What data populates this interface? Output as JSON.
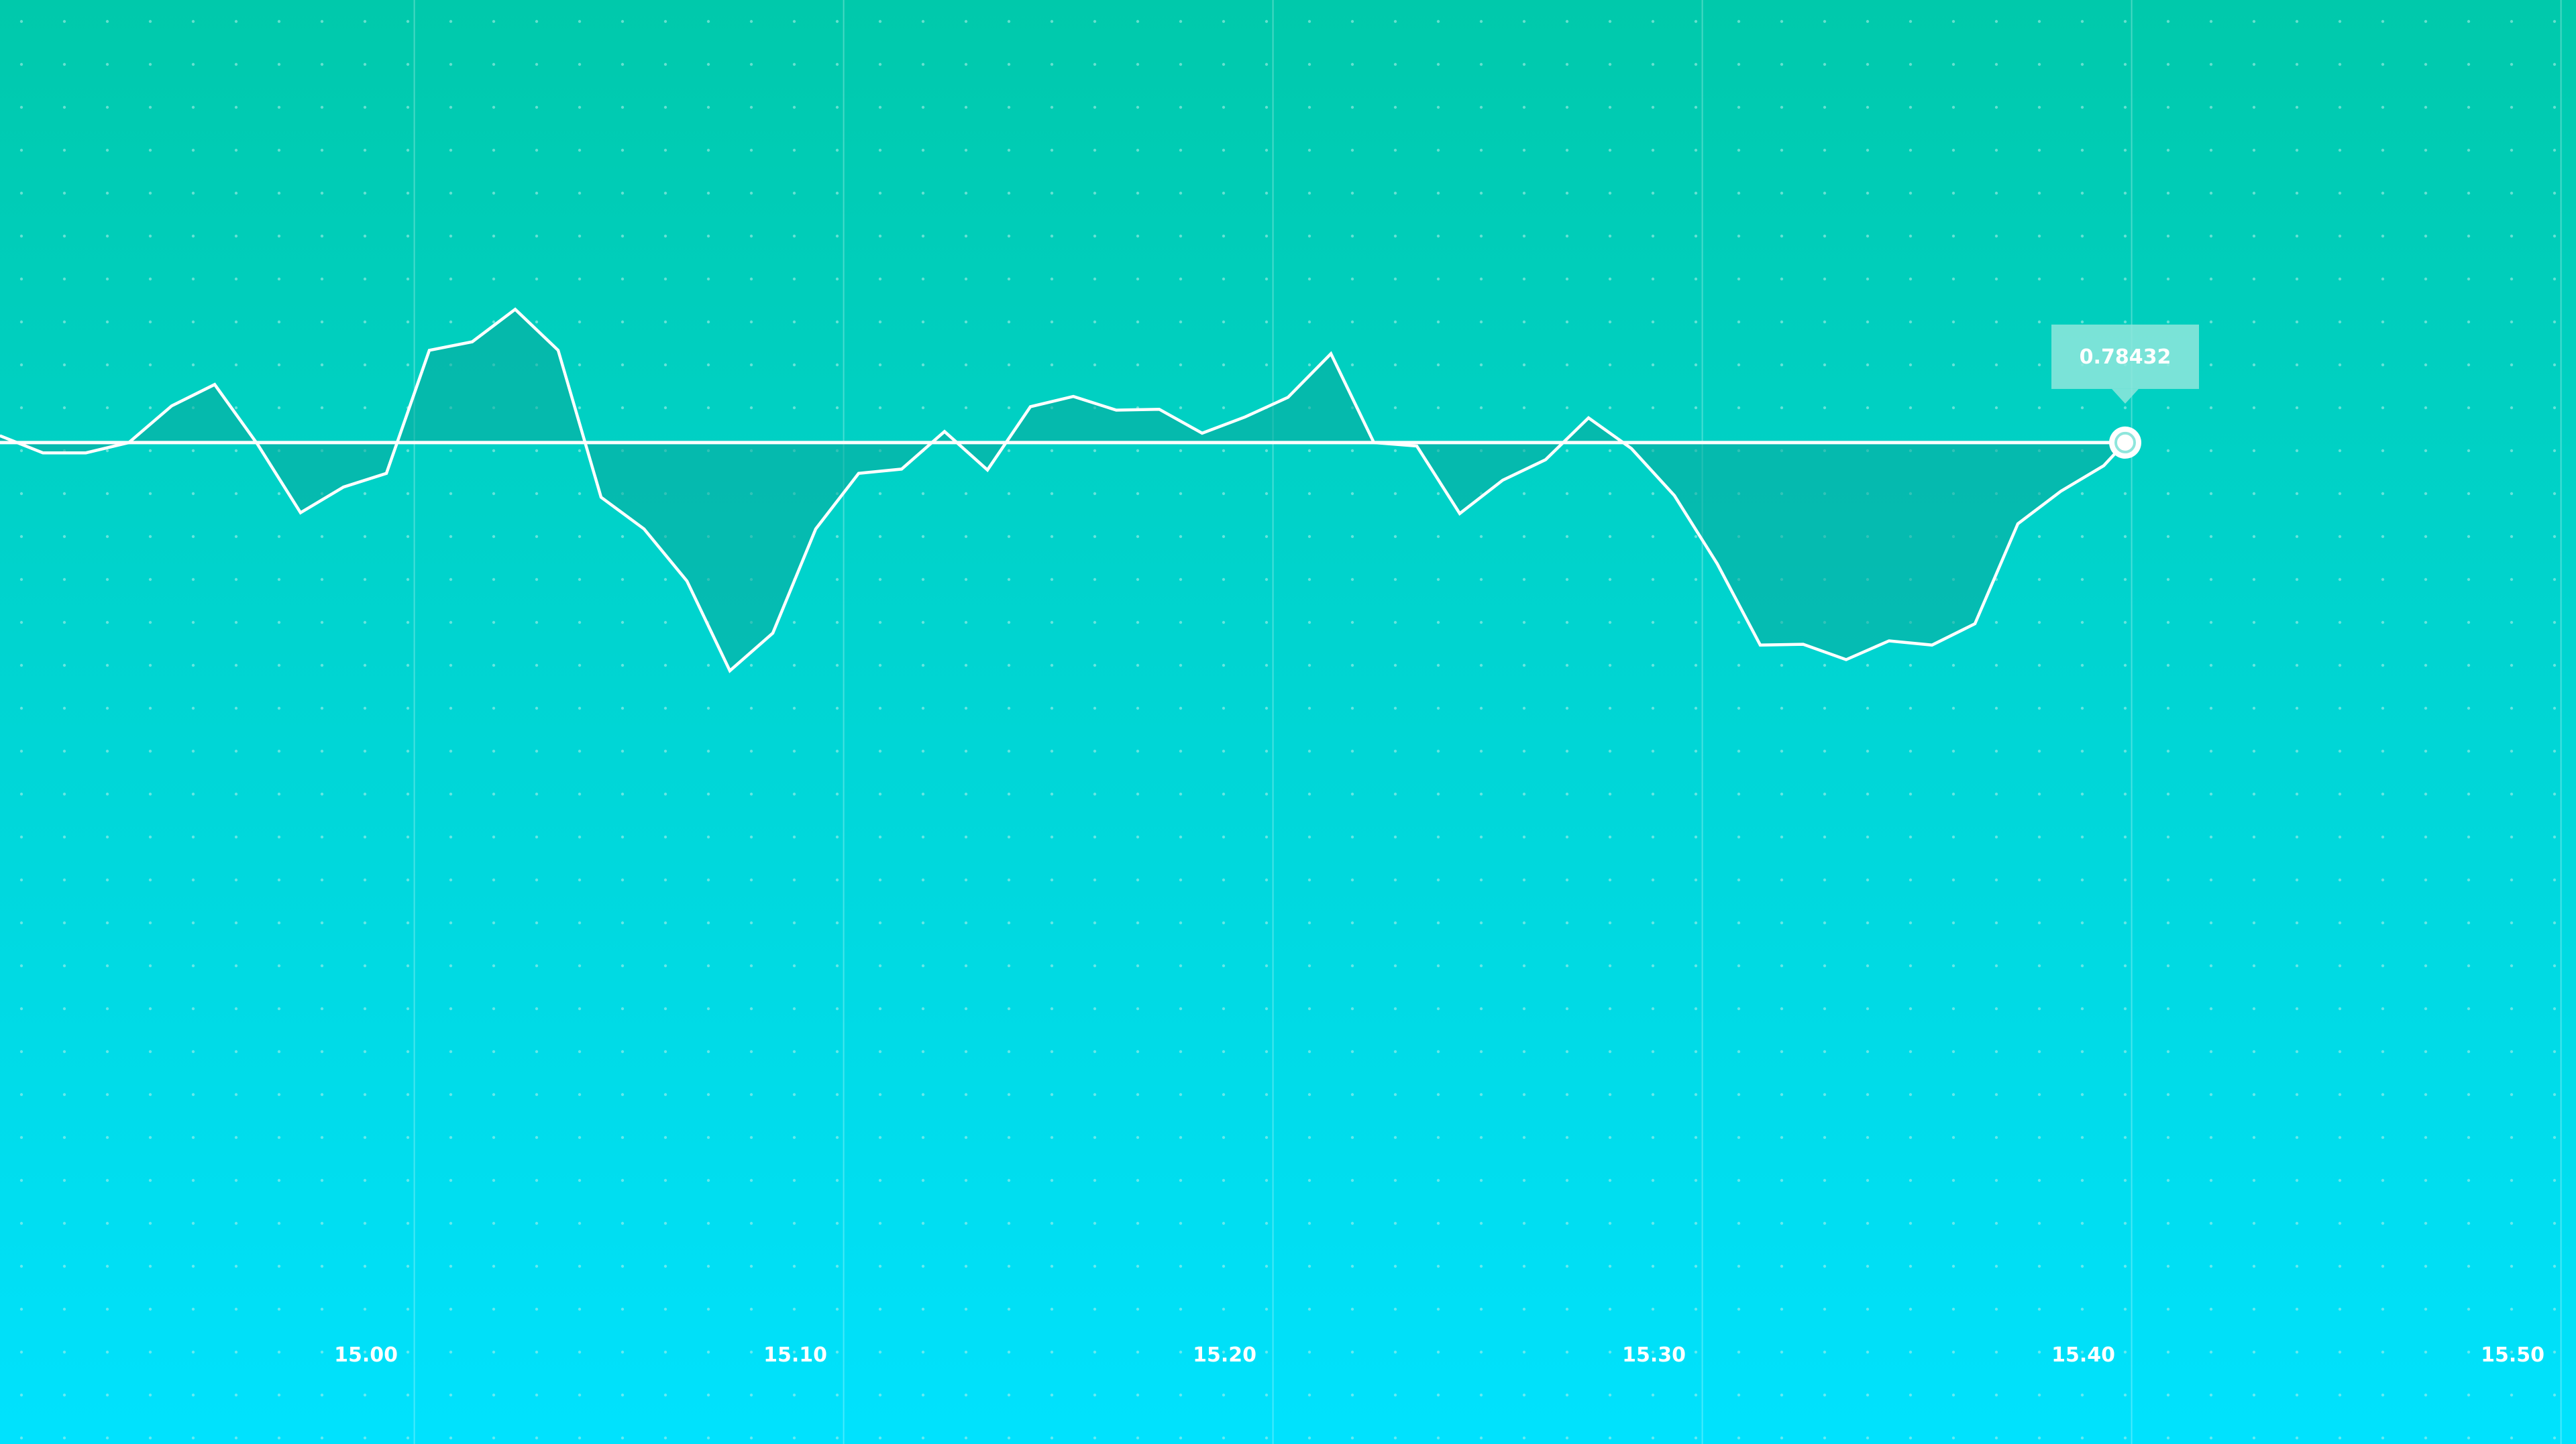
{
  "colors": {
    "background_top": "#00c9ab",
    "background_bottom": "#00e2fe",
    "line": "#ffffff",
    "area_fill": "#0aa89a",
    "tooltip_bg": "#8fe6dc",
    "grid_dot": "#b8f1ea"
  },
  "chart_data": {
    "type": "area",
    "title": "",
    "xlabel": "",
    "ylabel": "",
    "x_axis": "time (minutes; 15.00 = 15:00)",
    "xlim": [
      14.916,
      15.516
    ],
    "ylim": [
      0.7726,
      0.7895
    ],
    "baseline": 0.78432,
    "grid": true,
    "x_ticks": [
      {
        "value": 15.0,
        "label": "15.00"
      },
      {
        "value": 15.1,
        "label": "15.10"
      },
      {
        "value": 15.2,
        "label": "15.20"
      },
      {
        "value": 15.3,
        "label": "15.30"
      },
      {
        "value": 15.4,
        "label": "15.40"
      },
      {
        "value": 15.5,
        "label": "15.50"
      }
    ],
    "series": [
      {
        "x": [
          14.916,
          14.926,
          14.936,
          14.946,
          14.956,
          14.966,
          14.976,
          14.986,
          14.996,
          15.006,
          15.016,
          15.026,
          15.036,
          15.046,
          15.056,
          15.066,
          15.076,
          15.086,
          15.096,
          15.106,
          15.116,
          15.126,
          15.136,
          15.146,
          15.156,
          15.166,
          15.176,
          15.186,
          15.196,
          15.206,
          15.216,
          15.226,
          15.236,
          15.246,
          15.256,
          15.266,
          15.276,
          15.286,
          15.296,
          15.306,
          15.316,
          15.326,
          15.336,
          15.346,
          15.356,
          15.366,
          15.376,
          15.386,
          15.396,
          15.406,
          15.411
        ],
        "y": [
          0.7844,
          0.7842,
          0.7842,
          0.78432,
          0.78475,
          0.785,
          0.7843,
          0.7835,
          0.7838,
          0.78396,
          0.7854,
          0.7855,
          0.78588,
          0.7854,
          0.78368,
          0.78331,
          0.7827,
          0.78165,
          0.78209,
          0.78331,
          0.78396,
          0.78401,
          0.78445,
          0.784,
          0.78474,
          0.78486,
          0.7847,
          0.78471,
          0.78443,
          0.78462,
          0.78485,
          0.78536,
          0.78432,
          0.78428,
          0.78349,
          0.78388,
          0.78412,
          0.78461,
          0.78425,
          0.7837,
          0.7829,
          0.78195,
          0.78196,
          0.78178,
          0.782,
          0.78195,
          0.7822,
          0.78337,
          0.78375,
          0.78405,
          0.78432
        ]
      }
    ],
    "tooltip": {
      "x": 15.411,
      "y": 0.78432,
      "label": "0.78432"
    }
  }
}
